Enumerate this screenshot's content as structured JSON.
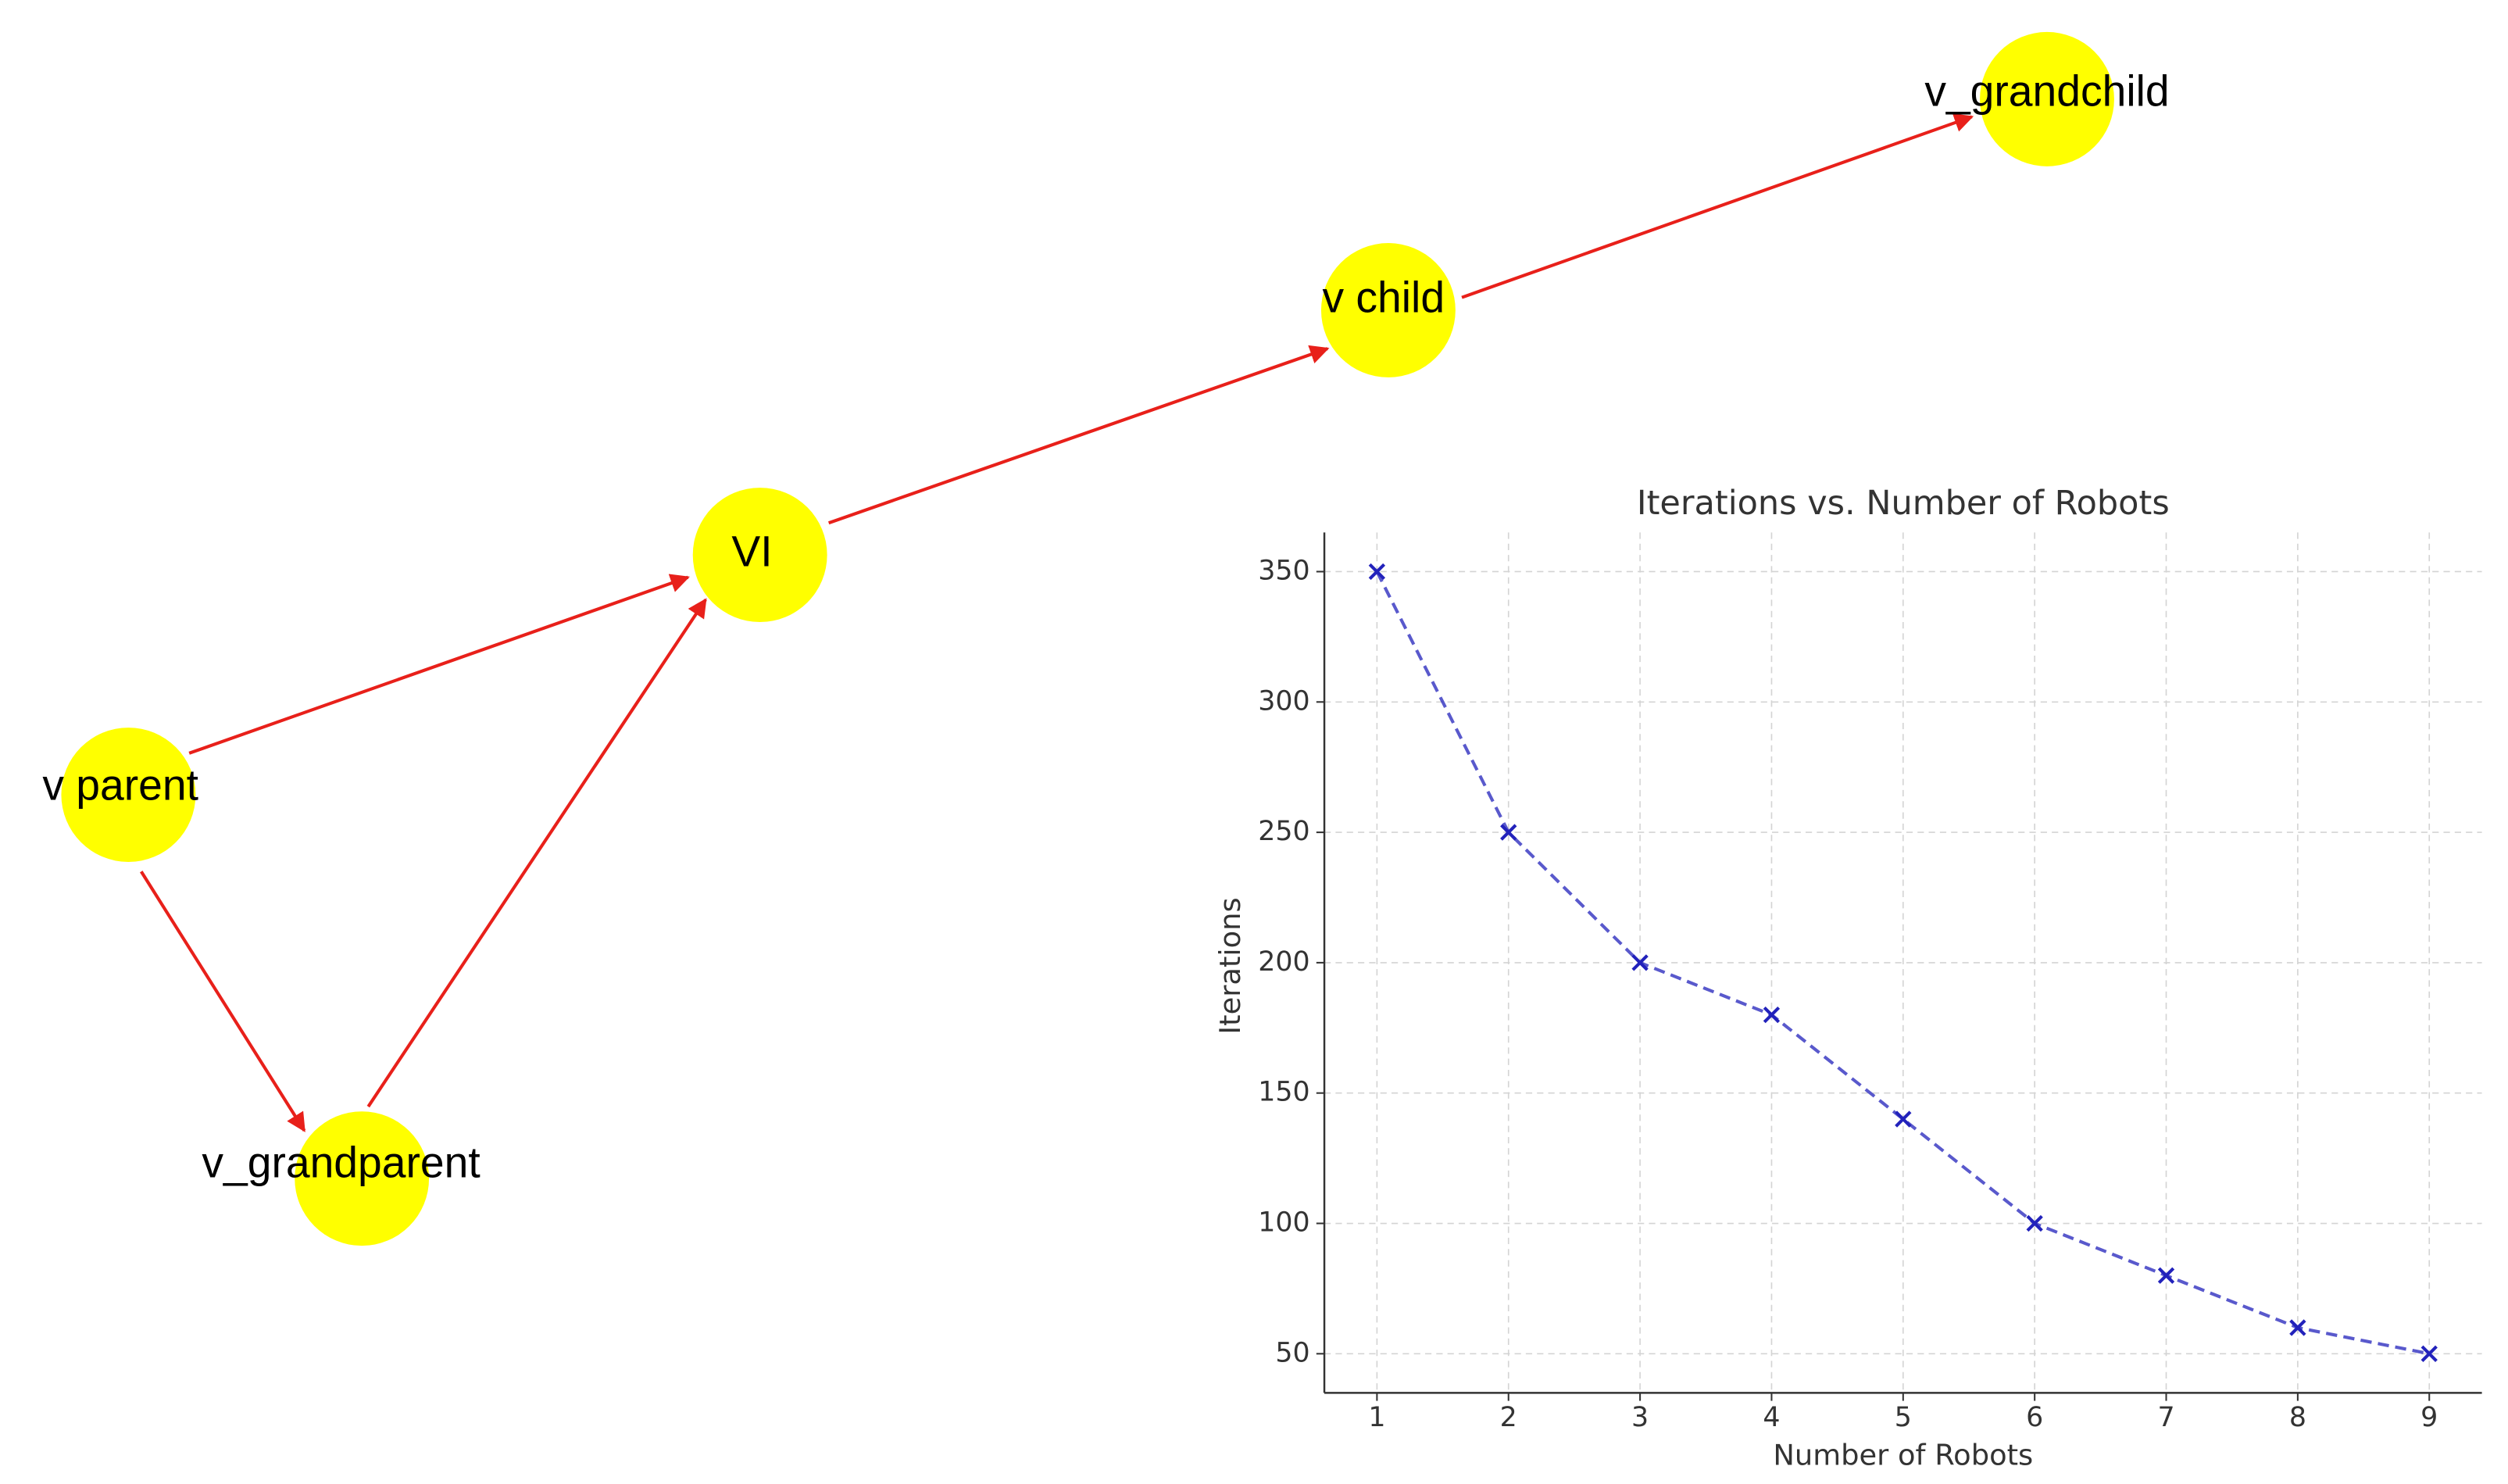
{
  "nodes": [
    {
      "label": "v parent"
    },
    {
      "label": "v_grandparent"
    },
    {
      "label": "VI"
    },
    {
      "label": "v child"
    },
    {
      "label": "v_grandchild"
    }
  ],
  "chart_data": {
    "type": "line",
    "title": "Iterations vs. Number of Robots",
    "x_label": "Number of Robots",
    "y_label": "Iterations",
    "x": [
      1,
      2,
      3,
      4,
      5,
      6,
      7,
      8,
      9
    ],
    "series": [
      {
        "name": "Iterations",
        "color": "#2222bb",
        "values": [
          350,
          250,
          200,
          180,
          140,
          100,
          80,
          60,
          50
        ]
      }
    ],
    "xlim": [
      0.6,
      9.4
    ],
    "ylim": [
      35,
      365
    ],
    "xticks": [
      1,
      2,
      3,
      4,
      5,
      6,
      7,
      8,
      9
    ],
    "yticks": [
      50,
      100,
      150,
      200,
      250,
      300,
      350
    ],
    "grid": true
  }
}
